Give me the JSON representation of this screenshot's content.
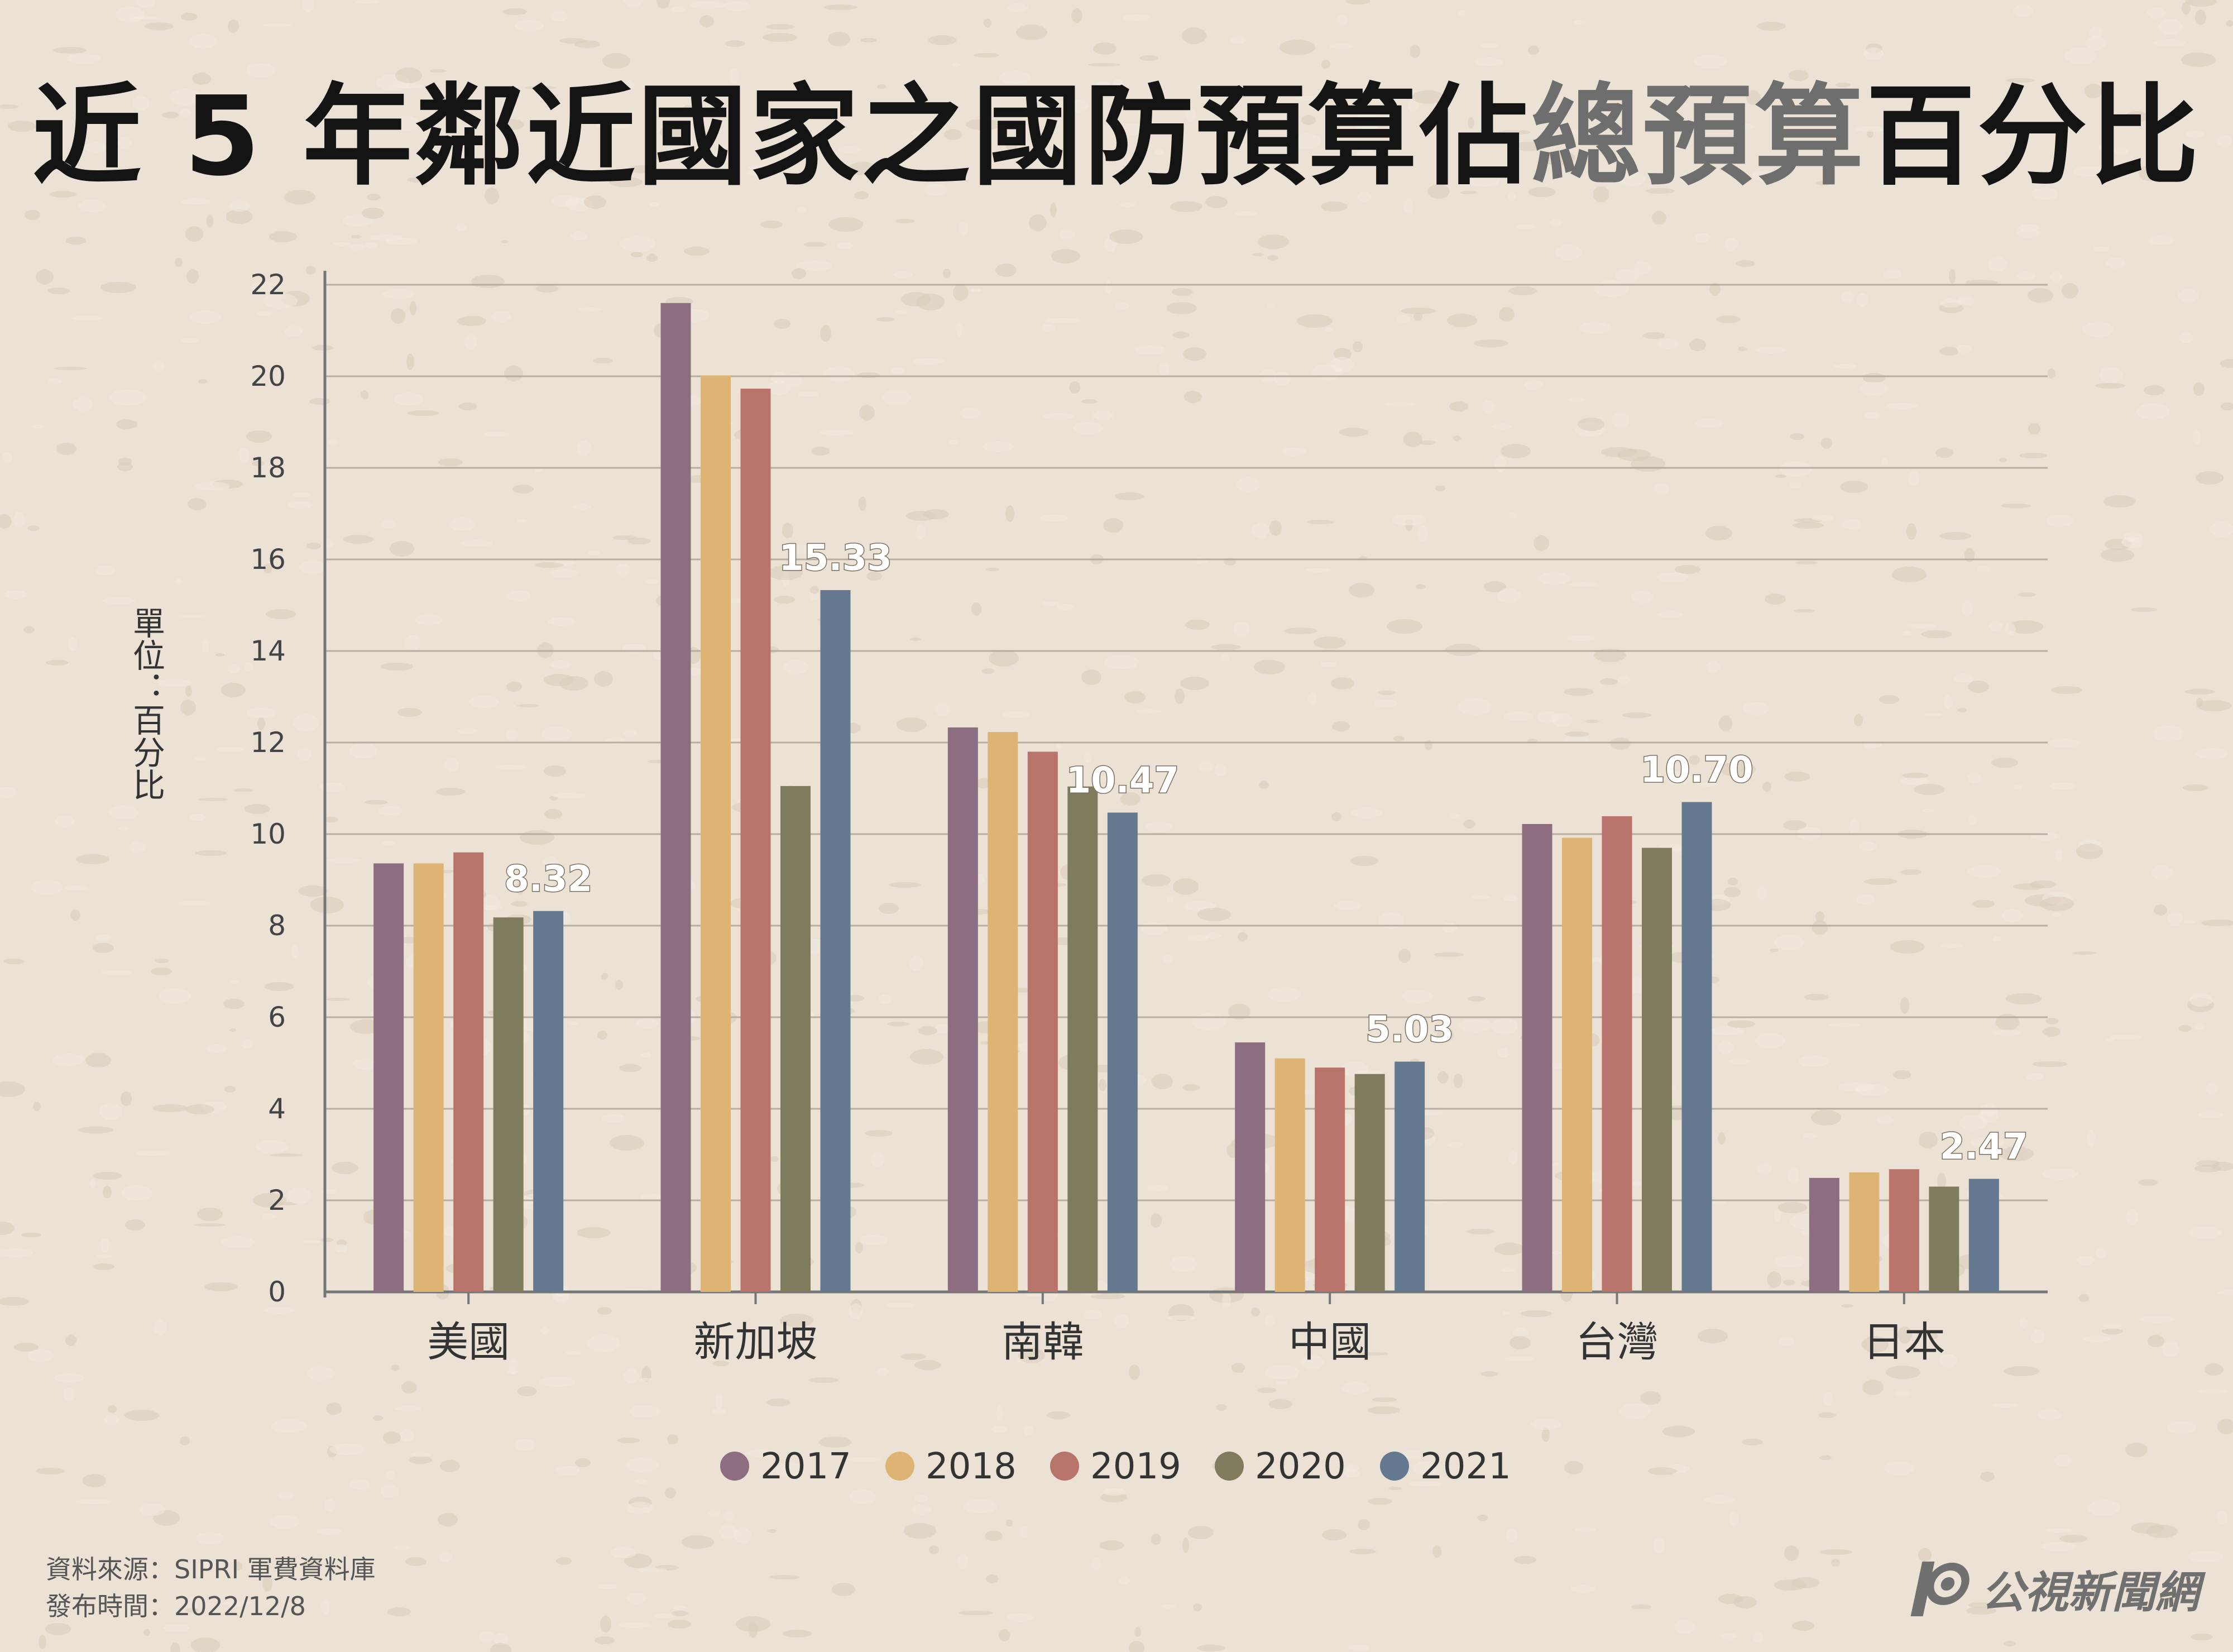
{
  "title": {
    "part1": "近 5 年鄰近國家之國防預算佔",
    "highlight": "總預算",
    "part2": "百分比"
  },
  "footer": {
    "source": "資料來源：SIPRI 軍費資料庫",
    "published": "發布時間：2022/12/8"
  },
  "logo": {
    "text": "公視新聞網"
  },
  "chart_data": {
    "type": "bar",
    "ylabel": "單位：百分比",
    "ylim": [
      0,
      22
    ],
    "yticks": [
      0,
      2,
      4,
      6,
      8,
      10,
      12,
      14,
      16,
      18,
      20,
      22
    ],
    "grid": true,
    "legend_position": "bottom-center",
    "categories": [
      "美國",
      "新加坡",
      "南韓",
      "中國",
      "台灣",
      "日本"
    ],
    "series": [
      {
        "name": "2017",
        "color": "#8d6d80",
        "values": [
          9.36,
          21.6,
          12.33,
          5.45,
          10.22,
          2.49
        ]
      },
      {
        "name": "2018",
        "color": "#ddb474",
        "values": [
          9.36,
          20.02,
          12.23,
          5.1,
          9.92,
          2.61
        ]
      },
      {
        "name": "2019",
        "color": "#b8736a",
        "values": [
          9.6,
          19.73,
          11.8,
          4.9,
          10.39,
          2.68
        ]
      },
      {
        "name": "2020",
        "color": "#7f7c5e",
        "values": [
          8.18,
          11.05,
          11.04,
          4.76,
          9.7,
          2.3
        ]
      },
      {
        "name": "2021",
        "color": "#647890",
        "values": [
          8.32,
          15.33,
          10.47,
          5.03,
          10.7,
          2.47
        ]
      }
    ],
    "data_labels": [
      "8.32",
      "15.33",
      "10.47",
      "5.03",
      "10.70",
      "2.47"
    ]
  }
}
